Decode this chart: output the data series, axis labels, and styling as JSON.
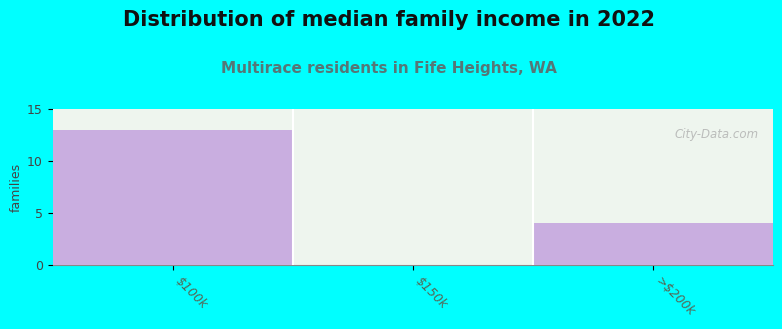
{
  "title": "Distribution of median family income in 2022",
  "subtitle": "Multirace residents in Fife Heights, WA",
  "categories": [
    "$100k",
    "$150k",
    ">$200k"
  ],
  "values": [
    13,
    0,
    4
  ],
  "bar_color": "#c9aee0",
  "bg_color_full": "#00FFFF",
  "plot_bg_color": "#f0fff8",
  "bar_bg_color": "#eef5ee",
  "ylabel": "families",
  "ylim": [
    0,
    15
  ],
  "yticks": [
    0,
    5,
    10,
    15
  ],
  "title_fontsize": 15,
  "subtitle_fontsize": 11,
  "subtitle_color": "#557777",
  "watermark": "City-Data.com",
  "bar_width": 1.0
}
